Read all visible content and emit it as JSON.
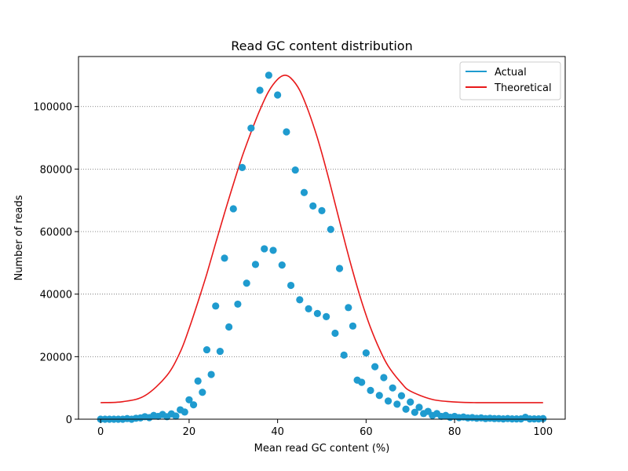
{
  "chart_data": {
    "type": "scatter",
    "title": "Read GC content distribution",
    "xlabel": "Mean read GC content (%)",
    "ylabel": "Number of reads",
    "xlim": [
      -5,
      105
    ],
    "ylim": [
      0,
      116000
    ],
    "xticks": [
      0,
      20,
      40,
      60,
      80,
      100
    ],
    "yticks": [
      0,
      20000,
      40000,
      60000,
      80000,
      100000
    ],
    "grid": "horizontal dotted",
    "legend_position": "top-right",
    "colors": {
      "actual": "#1f9bcf",
      "theoretical": "#e8191a"
    },
    "series": [
      {
        "name": "Actual",
        "kind": "scatter",
        "x": [
          0,
          1,
          2,
          3,
          4,
          5,
          6,
          7,
          8,
          9,
          10,
          11,
          12,
          13,
          14,
          15,
          16,
          17,
          18,
          19,
          20,
          21,
          22,
          23,
          24,
          25,
          26,
          27,
          28,
          29,
          30,
          31,
          32,
          33,
          34,
          35,
          36,
          37,
          38,
          39,
          40,
          41,
          42,
          43,
          44,
          45,
          46,
          47,
          48,
          49,
          50,
          51,
          52,
          53,
          54,
          55,
          56,
          57,
          58,
          59,
          60,
          61,
          62,
          63,
          64,
          65,
          66,
          67,
          68,
          69,
          70,
          71,
          72,
          73,
          74,
          75,
          76,
          77,
          78,
          79,
          80,
          81,
          82,
          83,
          84,
          85,
          86,
          87,
          88,
          89,
          90,
          91,
          92,
          93,
          94,
          95,
          96,
          97,
          98,
          99,
          100
        ],
        "y": [
          0,
          0,
          0,
          0,
          0,
          0,
          200,
          0,
          300,
          400,
          800,
          500,
          1200,
          900,
          1500,
          800,
          1700,
          1000,
          3000,
          2300,
          6200,
          4600,
          12200,
          8600,
          22200,
          14300,
          36200,
          21700,
          51500,
          29500,
          67300,
          36800,
          80500,
          43500,
          93100,
          49500,
          105200,
          54500,
          110000,
          54000,
          103700,
          49300,
          91900,
          42800,
          79700,
          38200,
          72500,
          35300,
          68200,
          33800,
          66700,
          32800,
          60700,
          27500,
          48200,
          20500,
          35700,
          29800,
          12500,
          11800,
          21200,
          9200,
          16800,
          7600,
          13300,
          5800,
          10000,
          4800,
          7500,
          3200,
          5500,
          2200,
          3800,
          1800,
          2500,
          1200,
          1800,
          900,
          1200,
          600,
          900,
          500,
          700,
          400,
          500,
          300,
          400,
          200,
          300,
          200,
          200,
          100,
          200,
          100,
          100,
          100,
          600,
          100,
          100,
          100,
          200
        ]
      },
      {
        "name": "Theoretical",
        "kind": "line",
        "x": [
          0,
          5,
          10,
          15,
          18,
          20,
          22,
          24,
          26,
          28,
          30,
          32,
          34,
          36,
          38,
          40,
          41.5,
          43,
          45,
          47,
          49,
          51,
          53,
          55,
          57,
          59,
          61,
          63,
          65,
          68,
          70,
          75,
          80,
          85,
          90,
          95,
          100
        ],
        "y": [
          5300,
          5600,
          7500,
          14000,
          21500,
          29000,
          37500,
          46500,
          56300,
          65900,
          75200,
          84000,
          91800,
          98900,
          104900,
          108700,
          110000,
          109100,
          105200,
          98400,
          89900,
          79900,
          68900,
          57800,
          47200,
          37600,
          29300,
          22500,
          17000,
          11500,
          9000,
          6300,
          5500,
          5300,
          5300,
          5300,
          5300
        ]
      }
    ]
  }
}
